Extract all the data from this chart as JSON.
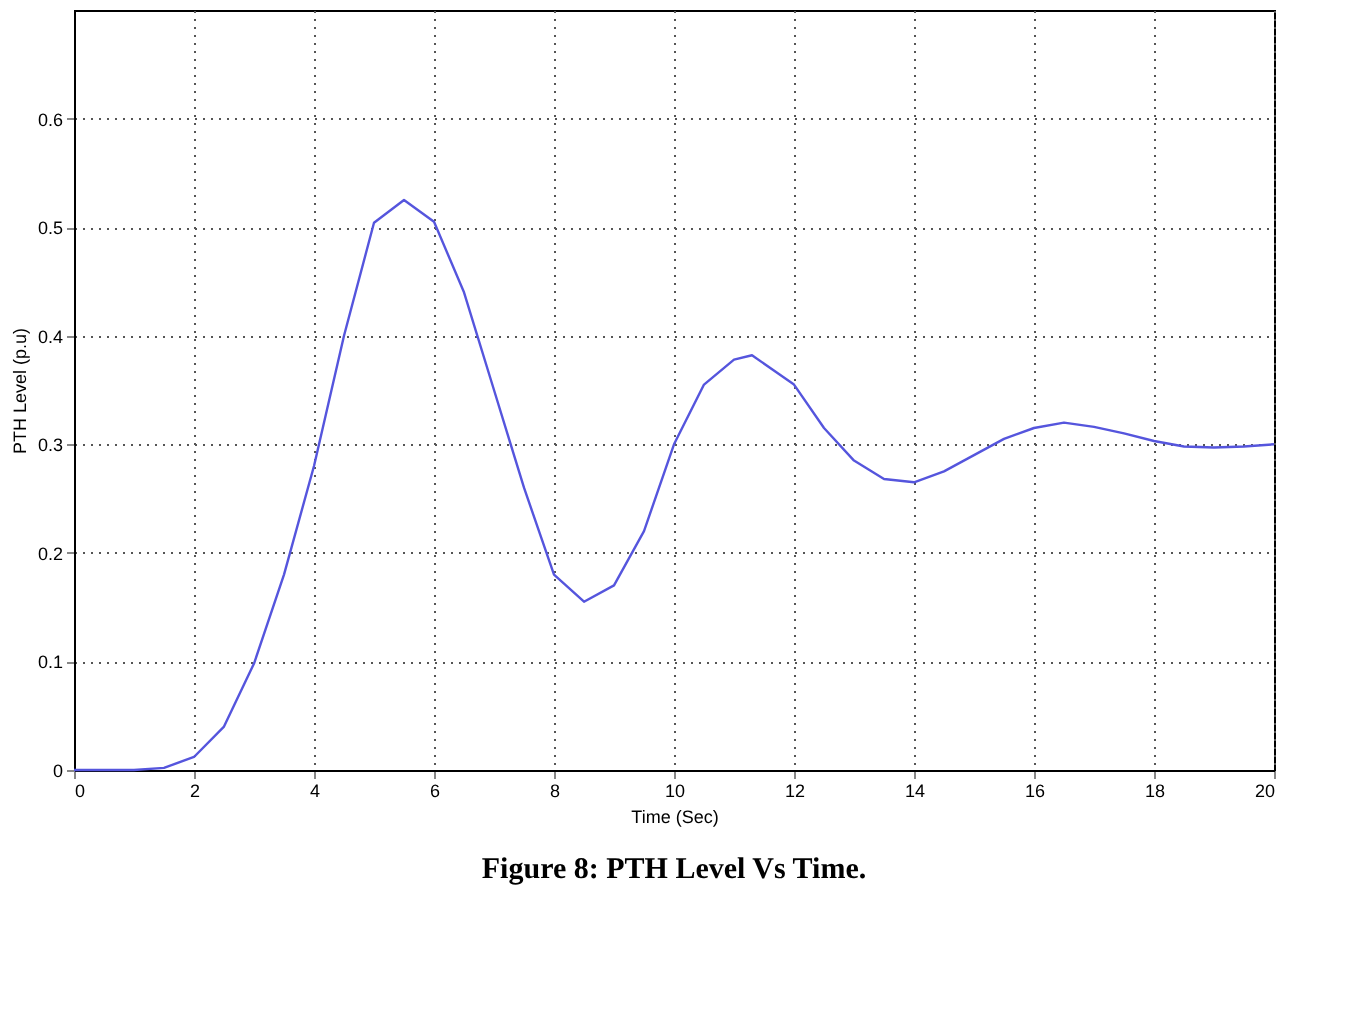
{
  "chart_data": {
    "type": "line",
    "title": "Figure 8: PTH Level Vs Time.",
    "xlabel": "Time (Sec)",
    "ylabel": "PTH Level (p.u)",
    "x": [
      0,
      1,
      1.5,
      2,
      2.5,
      3,
      3.5,
      4,
      4.5,
      5,
      5.5,
      6,
      6.5,
      7,
      7.5,
      8,
      8.5,
      9,
      9.5,
      10,
      10.5,
      11,
      11.3,
      12,
      12.5,
      13,
      13.5,
      14,
      14.5,
      15,
      15.5,
      16,
      16.5,
      17,
      17.5,
      18,
      18.5,
      19,
      19.5,
      20
    ],
    "series": [
      {
        "color": "#5555dd",
        "values": [
          0,
          0,
          0.002,
          0.012,
          0.04,
          0.098,
          0.18,
          0.28,
          0.4,
          0.504,
          0.525,
          0.505,
          0.44,
          0.35,
          0.26,
          0.18,
          0.155,
          0.17,
          0.22,
          0.3,
          0.355,
          0.378,
          0.382,
          0.355,
          0.315,
          0.285,
          0.268,
          0.265,
          0.275,
          0.29,
          0.305,
          0.315,
          0.32,
          0.316,
          0.31,
          0.303,
          0.298,
          0.297,
          0.298,
          0.3
        ]
      }
    ],
    "xlim": [
      0,
      20
    ],
    "xticks": [
      0,
      2,
      4,
      6,
      8,
      10,
      12,
      14,
      16,
      18,
      20
    ],
    "ylim": [
      0,
      0.7
    ],
    "yticks": [
      0,
      0.1,
      0.2,
      0.3,
      0.4,
      0.5,
      0.6
    ],
    "grid": true,
    "marker": "none",
    "line_style": "solid"
  }
}
